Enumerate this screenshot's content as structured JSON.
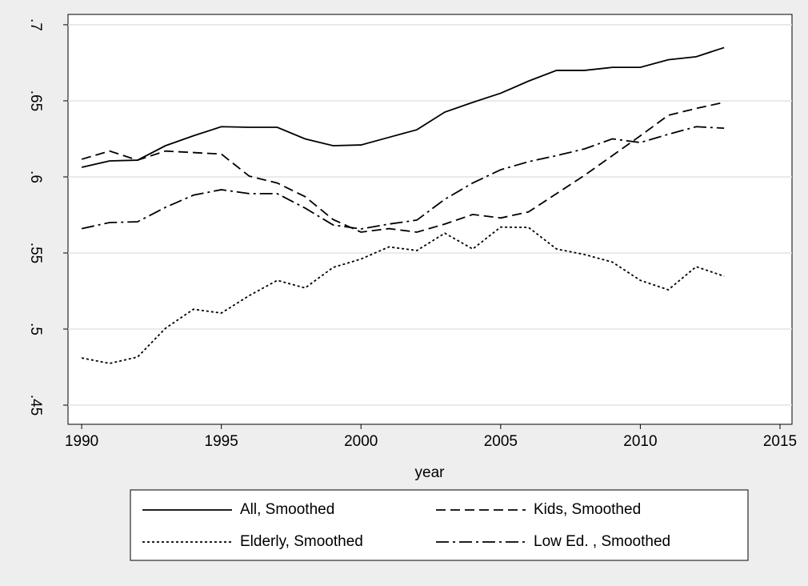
{
  "chart_data": {
    "type": "line",
    "x_label": "year",
    "x": [
      1990,
      1991,
      1992,
      1993,
      1994,
      1995,
      1996,
      1997,
      1998,
      1999,
      2000,
      2001,
      2002,
      2003,
      2004,
      2005,
      2006,
      2007,
      2008,
      2009,
      2010,
      2011,
      2012,
      2013
    ],
    "series": [
      {
        "name": "All, Smoothed",
        "color": "#000000",
        "dash": "none",
        "values": [
          0.6063,
          0.6105,
          0.611,
          0.6205,
          0.627,
          0.633,
          0.6326,
          0.6326,
          0.625,
          0.6205,
          0.621,
          0.626,
          0.631,
          0.6426,
          0.649,
          0.655,
          0.663,
          0.67,
          0.67,
          0.672,
          0.672,
          0.677,
          0.679,
          0.685
        ]
      },
      {
        "name": "Kids, Smoothed",
        "color": "#000000",
        "dash": "12,6",
        "values": [
          0.6116,
          0.617,
          0.611,
          0.617,
          0.616,
          0.615,
          0.6005,
          0.596,
          0.587,
          0.572,
          0.5637,
          0.566,
          0.5637,
          0.569,
          0.5753,
          0.573,
          0.577,
          0.589,
          0.601,
          0.614,
          0.627,
          0.6405,
          0.645,
          0.649
        ]
      },
      {
        "name": "Elderly, Smoothed",
        "color": "#000000",
        "dash": "3,3",
        "values": [
          0.481,
          0.4774,
          0.4816,
          0.5005,
          0.513,
          0.5105,
          0.522,
          0.532,
          0.527,
          0.5405,
          0.546,
          0.554,
          0.5516,
          0.563,
          0.5526,
          0.567,
          0.5668,
          0.5526,
          0.549,
          0.544,
          0.532,
          0.5258,
          0.541,
          0.5347
        ]
      },
      {
        "name": "Low Ed. , Smoothed",
        "color": "#000000",
        "dash": "16,5,3,5",
        "values": [
          0.566,
          0.57,
          0.5705,
          0.58,
          0.588,
          0.5916,
          0.589,
          0.589,
          0.5795,
          0.5684,
          0.5658,
          0.569,
          0.5716,
          0.5853,
          0.596,
          0.6047,
          0.61,
          0.614,
          0.6184,
          0.625,
          0.6226,
          0.628,
          0.633,
          0.632
        ]
      }
    ],
    "xlim": [
      1989.51,
      2015.43
    ],
    "xticks": [
      1990,
      1995,
      2000,
      2005,
      2010,
      2015
    ],
    "ylim": [
      0.4374,
      0.7068
    ],
    "yticks": [
      {
        "value": 0.45,
        "label": ".45"
      },
      {
        "value": 0.5,
        "label": ".5"
      },
      {
        "value": 0.55,
        "label": ".55"
      },
      {
        "value": 0.6,
        "label": ".6"
      },
      {
        "value": 0.65,
        "label": ".65"
      },
      {
        "value": 0.7,
        "label": ".7"
      }
    ],
    "grid": true,
    "legend_position": "bottom"
  }
}
